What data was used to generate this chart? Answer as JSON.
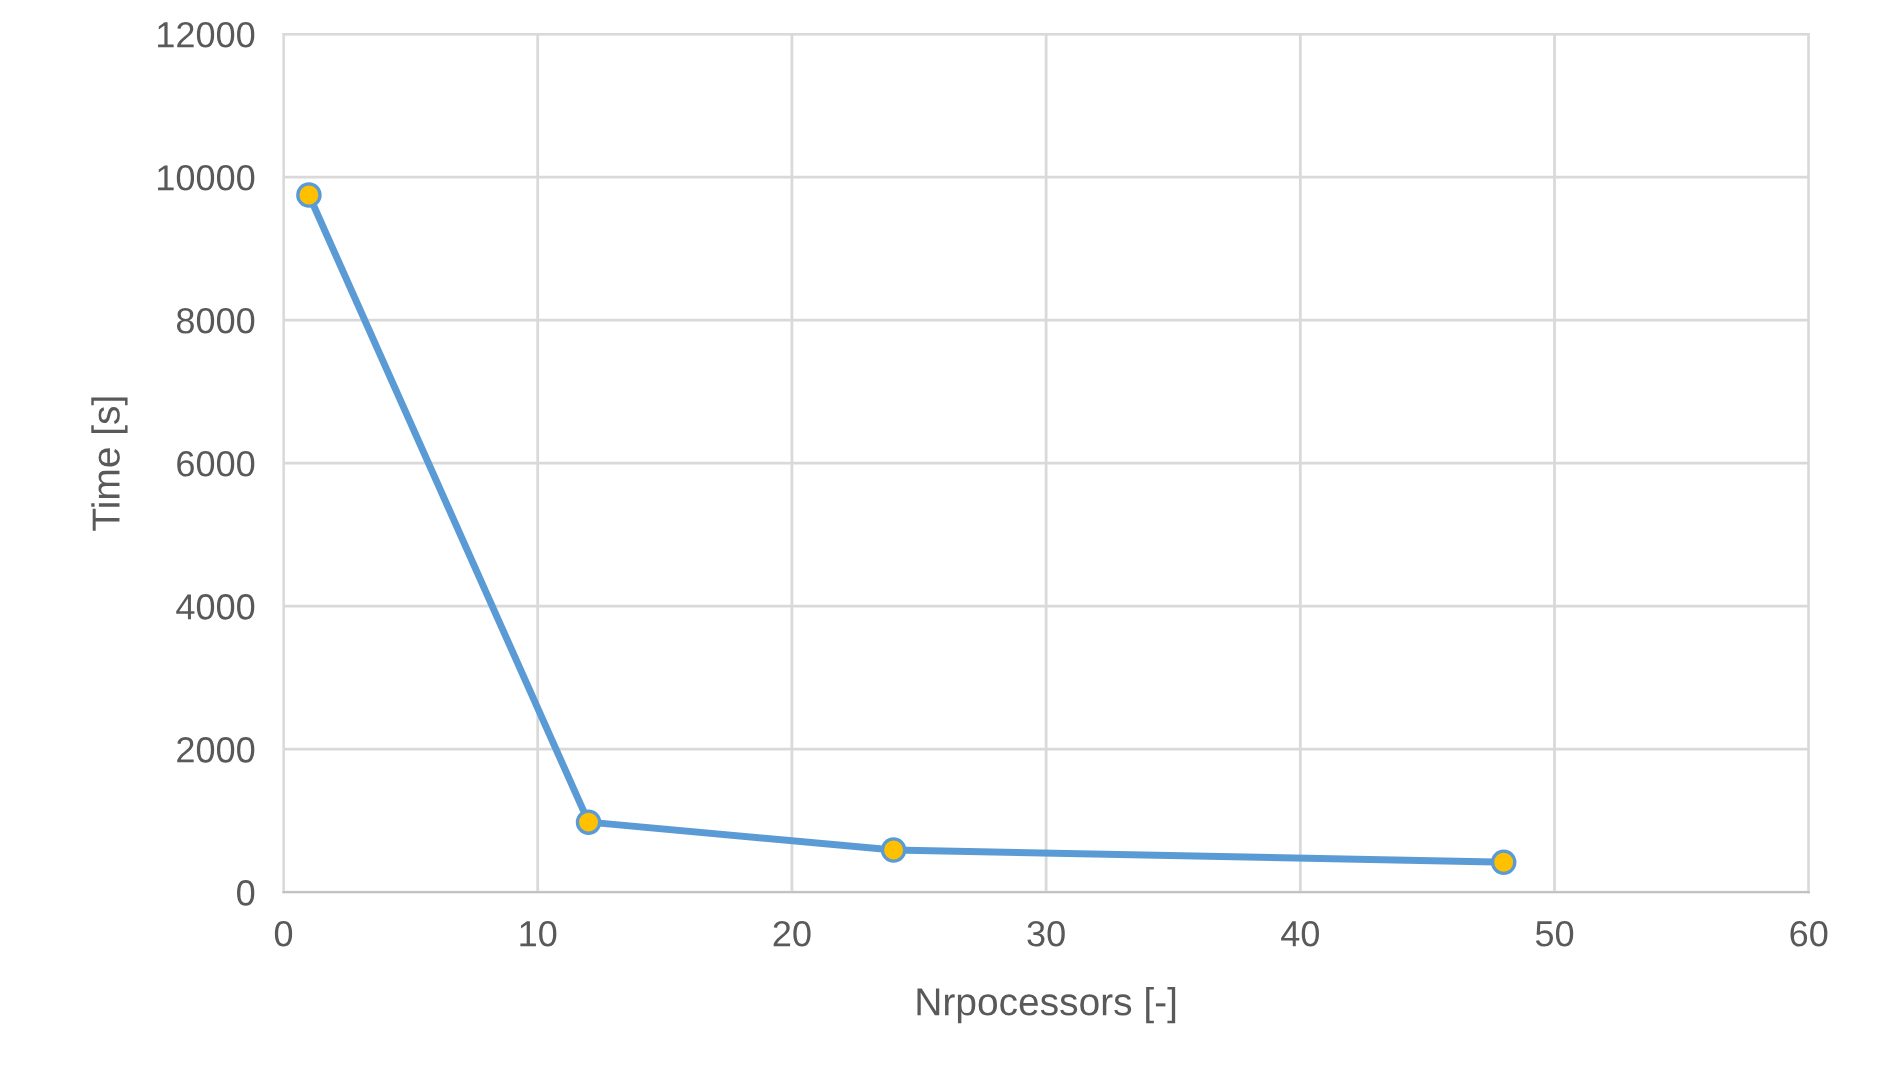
{
  "chart_data": {
    "type": "line",
    "xlabel": "Nrpocessors [-]",
    "ylabel": "Time [s]",
    "x": [
      1,
      12,
      24,
      48
    ],
    "series": [
      {
        "color": "#5b9bd5",
        "values": [
          9750,
          980,
          590,
          420
        ]
      }
    ],
    "xlim": [
      0,
      60
    ],
    "xticks": [
      0,
      10,
      20,
      30,
      40,
      50,
      60
    ],
    "ylim": [
      0,
      12000
    ],
    "yticks": [
      0,
      2000,
      4000,
      6000,
      8000,
      10000,
      12000
    ],
    "grid": true,
    "marker": "circle",
    "line_style": "solid"
  }
}
